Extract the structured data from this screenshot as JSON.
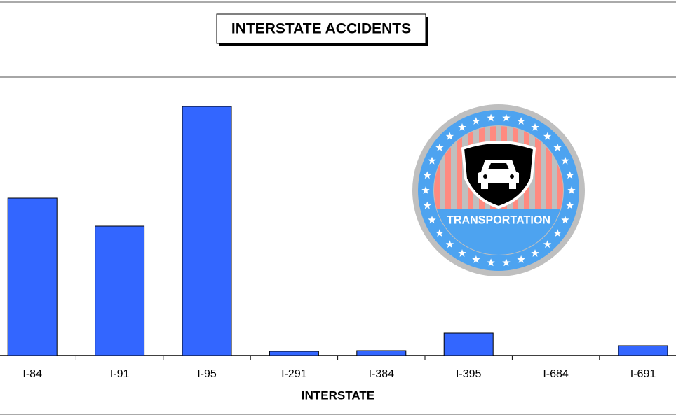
{
  "chart_data": {
    "type": "bar",
    "title": "INTERSTATE ACCIDENTS",
    "x_label": "INTERSTATE",
    "categories": [
      "I-84",
      "I-91",
      "I-95",
      "I-291",
      "I-384",
      "I-395",
      "I-684",
      "I-691"
    ],
    "values": [
      225,
      185,
      356,
      6,
      7,
      32,
      0,
      14
    ],
    "color": "#3366ff"
  },
  "logo": {
    "text": "TRANSPORTATION"
  }
}
